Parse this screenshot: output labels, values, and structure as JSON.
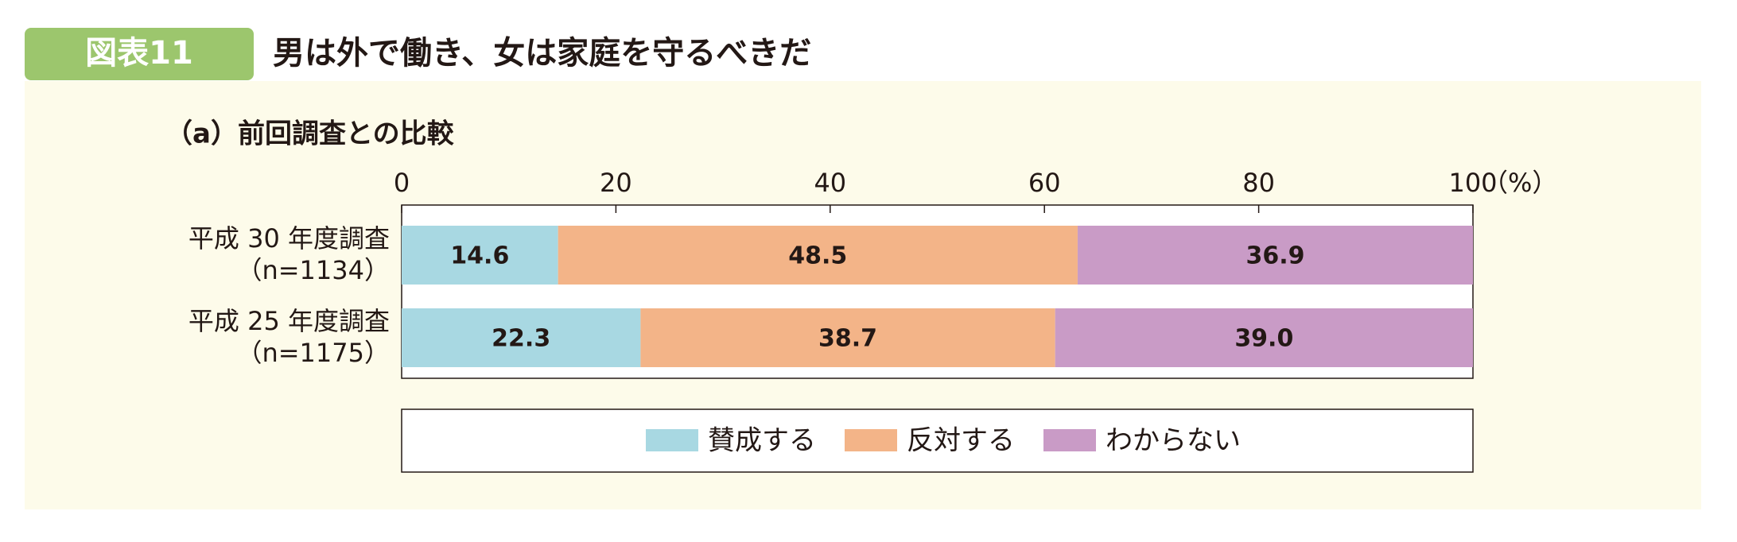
{
  "header": {
    "badge": "図表11",
    "title": "男は外で働き、女は家庭を守るべきだ"
  },
  "chart_data": {
    "type": "stacked-bar-horizontal",
    "subtitle": "（a）前回調査との比較",
    "unit_label": "（%）",
    "categories": [
      "平成 30 年度調査",
      "平成 25 年度調査"
    ],
    "category_notes": [
      "（n=1134）",
      "（n=1175）"
    ],
    "series": [
      {
        "name": "賛成する",
        "color": "#a8d8e2",
        "values": [
          14.6,
          22.3
        ]
      },
      {
        "name": "反対する",
        "color": "#f3b488",
        "values": [
          48.5,
          38.7
        ]
      },
      {
        "name": "わからない",
        "color": "#c99bc6",
        "values": [
          36.9,
          39.0
        ],
        "value_labels": [
          "36.9",
          "39.0"
        ]
      }
    ],
    "xlim": [
      0,
      100
    ],
    "xticks": [
      0,
      20,
      40,
      60,
      80,
      100
    ]
  }
}
